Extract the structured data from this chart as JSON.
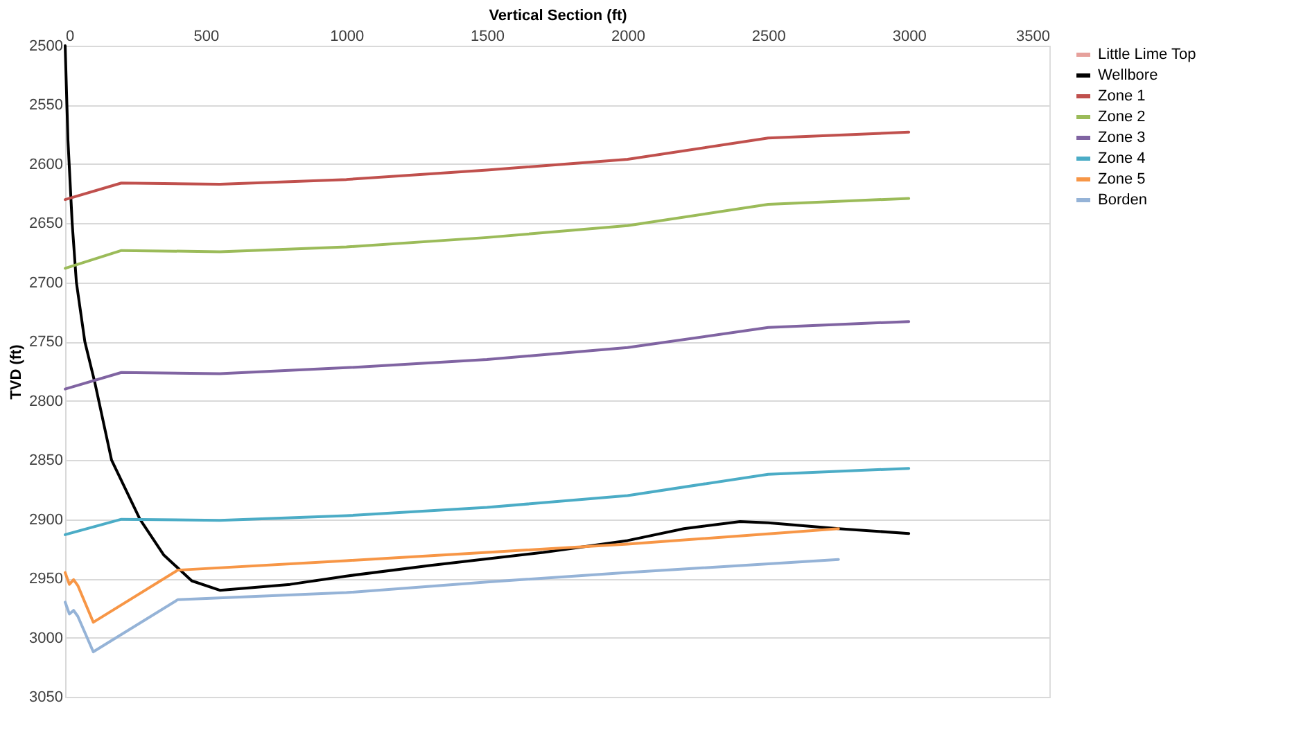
{
  "chart_data": {
    "type": "line",
    "xlabel": "Vertical Section (ft)",
    "ylabel": "TVD (ft)",
    "xlim": [
      0,
      3500
    ],
    "xticks": [
      0,
      500,
      1000,
      1500,
      2000,
      2500,
      3000,
      3500
    ],
    "ylim": [
      3050,
      2500
    ],
    "yticks": [
      2500,
      2550,
      2600,
      2650,
      2700,
      2750,
      2800,
      2850,
      2900,
      2950,
      3000,
      3050
    ],
    "grid": "y",
    "legend": "right",
    "marker": "none",
    "line_style": "solid",
    "series": [
      {
        "name": "Little Lime Top",
        "color": "#e6a19c"
      },
      {
        "name": "Wellbore",
        "color": "#000000",
        "x": [
          0,
          10,
          25,
          40,
          70,
          106,
          165,
          266,
          350,
          450,
          550,
          800,
          1000,
          1300,
          1700,
          2000,
          2200,
          2400,
          2500,
          2750,
          3000
        ],
        "values": [
          2500,
          2580,
          2650,
          2700,
          2750,
          2785,
          2850,
          2900,
          2930,
          2952,
          2960,
          2955,
          2948,
          2939,
          2928,
          2918,
          2908,
          2902,
          2903,
          2908,
          2912
        ]
      },
      {
        "name": "Zone 1",
        "color": "#c0504d",
        "x": [
          0,
          200,
          550,
          1000,
          1500,
          2000,
          2500,
          3000
        ],
        "values": [
          2630,
          2616,
          2617,
          2613,
          2605,
          2596,
          2578,
          2573
        ]
      },
      {
        "name": "Zone 2",
        "color": "#9bbb59",
        "x": [
          0,
          200,
          550,
          1000,
          1500,
          2000,
          2500,
          3000
        ],
        "values": [
          2688,
          2673,
          2674,
          2670,
          2662,
          2652,
          2634,
          2629
        ]
      },
      {
        "name": "Zone 3",
        "color": "#8064a2",
        "x": [
          0,
          200,
          550,
          1000,
          1500,
          2000,
          2500,
          3000
        ],
        "values": [
          2790,
          2776,
          2777,
          2772,
          2765,
          2755,
          2738,
          2733
        ]
      },
      {
        "name": "Zone 4",
        "color": "#4bacc6",
        "x": [
          0,
          200,
          550,
          1000,
          1500,
          2000,
          2500,
          3000
        ],
        "values": [
          2913,
          2900,
          2901,
          2897,
          2890,
          2880,
          2862,
          2857
        ]
      },
      {
        "name": "Zone 5",
        "color": "#f79646",
        "x": [
          0,
          15,
          30,
          45,
          100,
          400,
          1000,
          1500,
          2000,
          2750
        ],
        "values": [
          2945,
          2955,
          2951,
          2956,
          2987,
          2943,
          2935,
          2928,
          2921,
          2908
        ]
      },
      {
        "name": "Borden",
        "color": "#95b3d7",
        "x": [
          0,
          15,
          30,
          45,
          100,
          400,
          1000,
          1500,
          2000,
          2750
        ],
        "values": [
          2970,
          2980,
          2977,
          2982,
          3012,
          2968,
          2962,
          2953,
          2945,
          2934
        ]
      }
    ]
  }
}
